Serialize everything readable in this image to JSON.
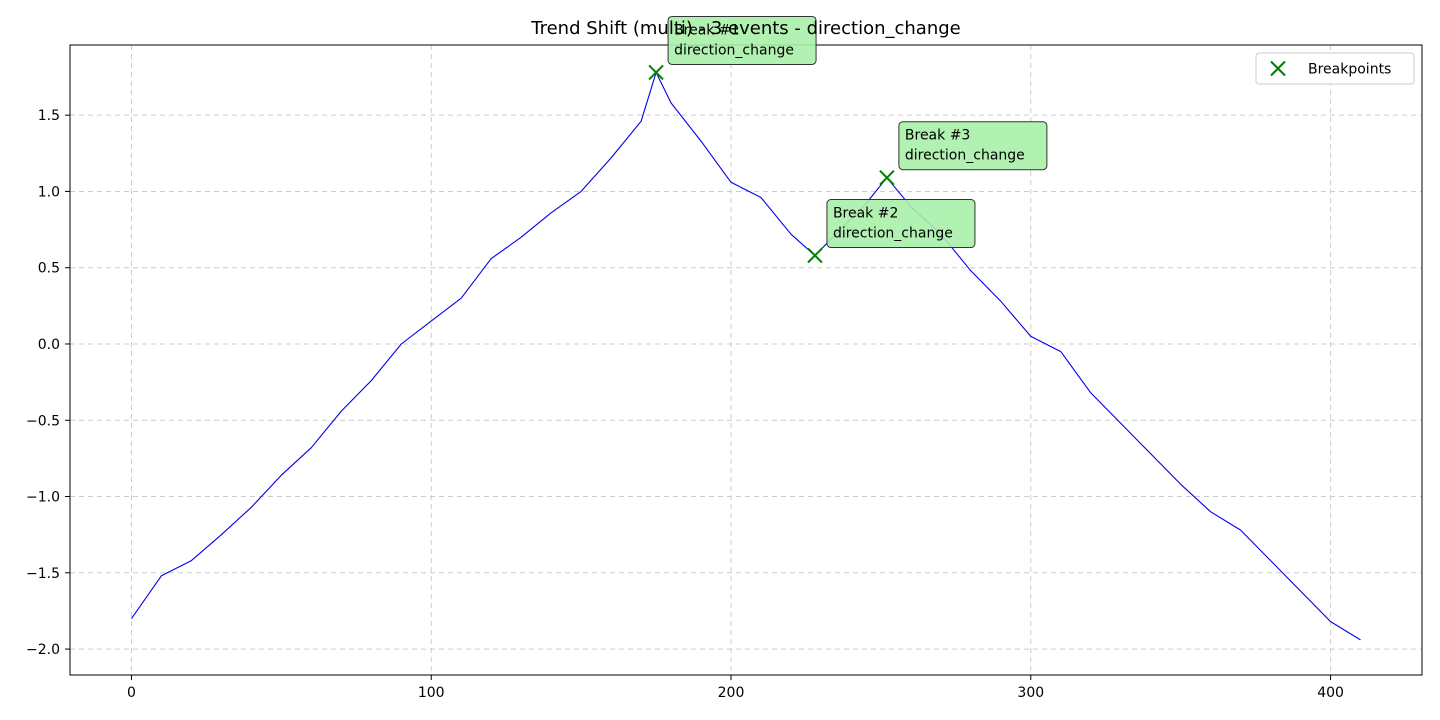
{
  "chart_data": {
    "type": "line",
    "title": "Trend Shift (multi) - 3 events - direction_change",
    "xlabel": "",
    "ylabel": "",
    "xlim": [
      -20.5,
      430.5
    ],
    "ylim": [
      -2.17,
      1.96
    ],
    "xticks": [
      0,
      100,
      200,
      300,
      400
    ],
    "yticks": [
      -2.0,
      -1.5,
      -1.0,
      -0.5,
      0.0,
      0.5,
      1.0,
      1.5
    ],
    "grid": true,
    "legend_position": "top-right",
    "line_color": "#0000ee",
    "breakpoint_color": "#008000",
    "annotation_fill": "#a8f0a8",
    "series": [
      {
        "points": [
          [
            0,
            -1.8
          ],
          [
            10,
            -1.52
          ],
          [
            20,
            -1.42
          ],
          [
            30,
            -1.25
          ],
          [
            40,
            -1.07
          ],
          [
            50,
            -0.86
          ],
          [
            60,
            -0.68
          ],
          [
            70,
            -0.44
          ],
          [
            80,
            -0.24
          ],
          [
            90,
            0.0
          ],
          [
            100,
            0.15
          ],
          [
            110,
            0.3
          ],
          [
            120,
            0.56
          ],
          [
            130,
            0.7
          ],
          [
            140,
            0.86
          ],
          [
            150,
            1.0
          ],
          [
            160,
            1.22
          ],
          [
            170,
            1.46
          ],
          [
            175,
            1.78
          ],
          [
            180,
            1.58
          ],
          [
            190,
            1.33
          ],
          [
            200,
            1.06
          ],
          [
            210,
            0.96
          ],
          [
            220,
            0.72
          ],
          [
            228,
            0.58
          ],
          [
            235,
            0.72
          ],
          [
            245,
            0.92
          ],
          [
            252,
            1.09
          ],
          [
            260,
            0.9
          ],
          [
            270,
            0.72
          ],
          [
            280,
            0.48
          ],
          [
            290,
            0.28
          ],
          [
            300,
            0.05
          ],
          [
            310,
            -0.05
          ],
          [
            320,
            -0.32
          ],
          [
            330,
            -0.52
          ],
          [
            340,
            -0.72
          ],
          [
            350,
            -0.92
          ],
          [
            360,
            -1.1
          ],
          [
            370,
            -1.22
          ],
          [
            380,
            -1.42
          ],
          [
            390,
            -1.62
          ],
          [
            400,
            -1.82
          ],
          [
            410,
            -1.94
          ]
        ]
      }
    ],
    "legend": [
      {
        "label": "Breakpoints"
      }
    ],
    "breakpoints": [
      {
        "x": 175,
        "y": 1.78
      },
      {
        "x": 228,
        "y": 0.58
      },
      {
        "x": 252,
        "y": 1.09
      }
    ],
    "annotations": [
      {
        "lines": [
          "Break #1",
          "direction_change"
        ],
        "anchor_x": 175,
        "anchor_y": 1.78
      },
      {
        "lines": [
          "Break #2",
          "direction_change"
        ],
        "anchor_x": 228,
        "anchor_y": 0.58
      },
      {
        "lines": [
          "Break #3",
          "direction_change"
        ],
        "anchor_x": 252,
        "anchor_y": 1.09
      }
    ]
  }
}
